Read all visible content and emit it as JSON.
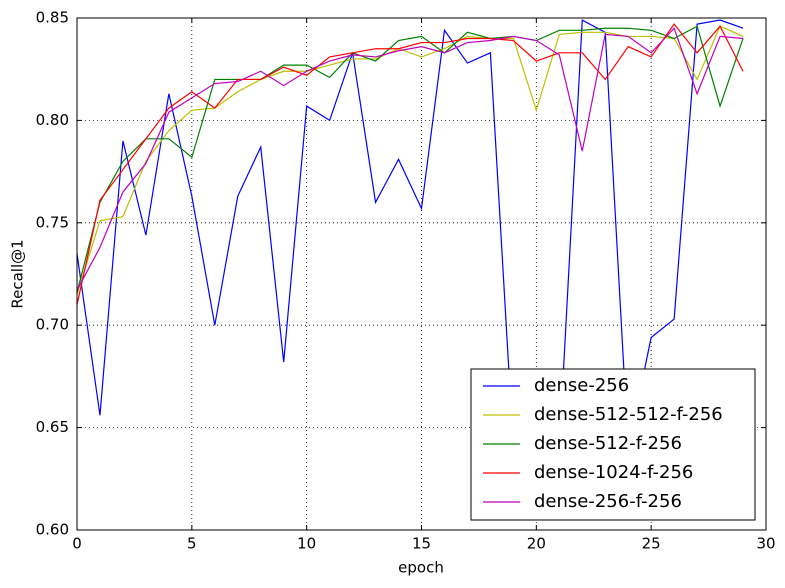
{
  "chart_data": {
    "type": "line",
    "x_label": "epoch",
    "y_label": "Recall@1",
    "x": [
      0,
      1,
      2,
      3,
      4,
      5,
      6,
      7,
      8,
      9,
      10,
      11,
      12,
      13,
      14,
      15,
      16,
      17,
      18,
      19,
      20,
      21,
      22,
      23,
      24,
      25,
      26,
      27,
      28,
      29
    ],
    "xlim": [
      0,
      30
    ],
    "xticks": [
      0,
      5,
      10,
      15,
      20,
      25,
      30
    ],
    "ylim": [
      0.6,
      0.85
    ],
    "yticks": [
      {
        "value": 0.6,
        "label": "0.60"
      },
      0.65,
      {
        "value": 0.7,
        "label": "0.70"
      },
      0.75,
      {
        "value": 0.8,
        "label": "0.80"
      },
      0.85
    ],
    "grid": true,
    "legend": "lower right",
    "series": [
      {
        "name": "dense-256",
        "color": "#0000ff",
        "values": [
          0.735,
          0.656,
          0.79,
          0.744,
          0.813,
          0.763,
          0.7,
          0.763,
          0.787,
          0.682,
          0.807,
          0.8,
          0.833,
          0.76,
          0.781,
          0.757,
          0.844,
          0.828,
          0.833,
          0.64,
          0.62,
          0.64,
          0.849,
          0.843,
          0.64,
          0.694,
          0.703,
          0.847,
          0.849,
          0.845
        ]
      },
      {
        "name": "dense-512-512-f-256",
        "color": "#bfbf00",
        "values": [
          0.715,
          0.751,
          0.753,
          0.78,
          0.795,
          0.805,
          0.806,
          0.814,
          0.82,
          0.824,
          0.824,
          0.827,
          0.83,
          0.83,
          0.835,
          0.831,
          0.835,
          0.841,
          0.84,
          0.84,
          0.805,
          0.842,
          0.843,
          0.843,
          0.841,
          0.841,
          0.84,
          0.82,
          0.846,
          0.841
        ]
      },
      {
        "name": "dense-512-f-256",
        "color": "#008000",
        "values": [
          0.716,
          0.76,
          0.78,
          0.791,
          0.791,
          0.782,
          0.82,
          0.82,
          0.82,
          0.827,
          0.827,
          0.821,
          0.833,
          0.829,
          0.839,
          0.841,
          0.833,
          0.843,
          0.84,
          0.841,
          0.839,
          0.844,
          0.844,
          0.845,
          0.845,
          0.844,
          0.84,
          0.846,
          0.807,
          0.84
        ]
      },
      {
        "name": "dense-1024-f-256",
        "color": "#ff0000",
        "values": [
          0.71,
          0.761,
          0.776,
          0.791,
          0.806,
          0.814,
          0.806,
          0.82,
          0.82,
          0.826,
          0.822,
          0.831,
          0.833,
          0.835,
          0.835,
          0.838,
          0.838,
          0.84,
          0.84,
          0.839,
          0.829,
          0.833,
          0.833,
          0.82,
          0.836,
          0.831,
          0.847,
          0.833,
          0.846,
          0.824
        ]
      },
      {
        "name": "dense-256-f-256",
        "color": "#bf00bf",
        "values": [
          0.717,
          0.738,
          0.765,
          0.779,
          0.804,
          0.811,
          0.818,
          0.819,
          0.824,
          0.817,
          0.824,
          0.829,
          0.832,
          0.831,
          0.834,
          0.836,
          0.833,
          0.838,
          0.839,
          0.841,
          0.839,
          0.832,
          0.785,
          0.842,
          0.841,
          0.833,
          0.845,
          0.813,
          0.841,
          0.84
        ]
      }
    ]
  }
}
